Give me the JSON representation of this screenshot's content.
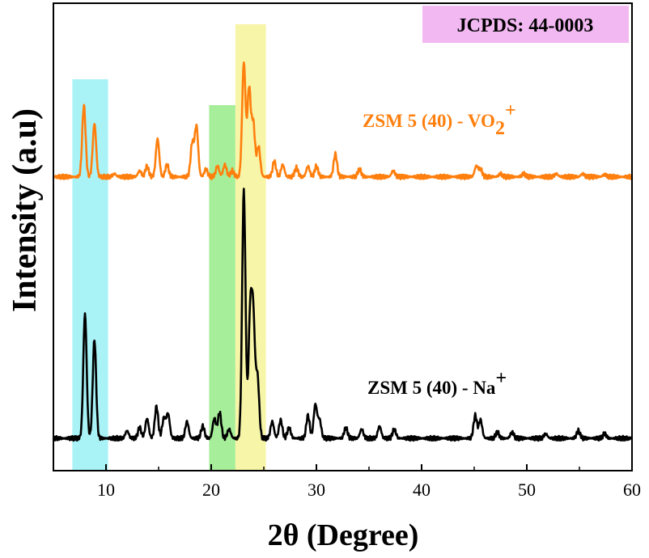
{
  "chart_data": {
    "type": "line",
    "xlabel": "2θ (Degree)",
    "ylabel": "Intensity (a.u)",
    "xlim": [
      5,
      60
    ],
    "x_ticks": [
      "10",
      "20",
      "30",
      "40",
      "50",
      "60"
    ],
    "y_ticks_shown": false,
    "grid": false,
    "reference_label": "JCPDS: 44-0003",
    "reference_box_color": "#f2b8f2",
    "highlight_bands": [
      {
        "x_range": [
          6.8,
          10.2
        ],
        "color": "#a9f3f7"
      },
      {
        "x_range": [
          19.8,
          22.3
        ],
        "color": "#a7ee9a"
      },
      {
        "x_range": [
          22.3,
          25.2
        ],
        "color": "#f7f5a8"
      }
    ],
    "series": [
      {
        "name": "ZSM 5 (40) - Na",
        "label_superscript": "+",
        "label_subscript": "",
        "color": "#000000",
        "baseline": 0,
        "peaks": [
          [
            8.0,
            82
          ],
          [
            8.9,
            65
          ],
          [
            12.0,
            5
          ],
          [
            13.2,
            7
          ],
          [
            13.9,
            13
          ],
          [
            14.8,
            21
          ],
          [
            15.5,
            13
          ],
          [
            15.9,
            16
          ],
          [
            17.7,
            11
          ],
          [
            19.2,
            8
          ],
          [
            20.3,
            13
          ],
          [
            20.8,
            17
          ],
          [
            21.7,
            6
          ],
          [
            23.1,
            163
          ],
          [
            23.7,
            78
          ],
          [
            24.0,
            75
          ],
          [
            24.4,
            40
          ],
          [
            25.8,
            11
          ],
          [
            26.6,
            12
          ],
          [
            27.4,
            7
          ],
          [
            29.2,
            15
          ],
          [
            29.9,
            22
          ],
          [
            30.3,
            12
          ],
          [
            32.8,
            7
          ],
          [
            34.3,
            6
          ],
          [
            36.0,
            8
          ],
          [
            37.4,
            6
          ],
          [
            45.1,
            15
          ],
          [
            45.6,
            12
          ],
          [
            47.2,
            4
          ],
          [
            48.6,
            4
          ],
          [
            51.8,
            3
          ],
          [
            54.9,
            5
          ],
          [
            57.4,
            3
          ]
        ]
      },
      {
        "name": "ZSM 5 (40) - VO",
        "label_superscript": "+",
        "label_subscript": "2",
        "color": "#ff7f0e",
        "baseline": 172,
        "peaks": [
          [
            7.9,
            47
          ],
          [
            8.9,
            35
          ],
          [
            10.8,
            2
          ],
          [
            13.2,
            4
          ],
          [
            13.9,
            7
          ],
          [
            14.9,
            25
          ],
          [
            15.8,
            8
          ],
          [
            18.2,
            22
          ],
          [
            18.6,
            33
          ],
          [
            19.5,
            5
          ],
          [
            20.6,
            7
          ],
          [
            21.3,
            8
          ],
          [
            22.0,
            4
          ],
          [
            23.1,
            75
          ],
          [
            23.6,
            58
          ],
          [
            24.0,
            35
          ],
          [
            24.5,
            20
          ],
          [
            26.0,
            10
          ],
          [
            26.8,
            8
          ],
          [
            28.1,
            6
          ],
          [
            29.2,
            7
          ],
          [
            30.0,
            7
          ],
          [
            31.8,
            15
          ],
          [
            34.1,
            5
          ],
          [
            37.3,
            4
          ],
          [
            45.2,
            7
          ],
          [
            45.6,
            5
          ],
          [
            47.5,
            2
          ],
          [
            49.7,
            2
          ],
          [
            52.8,
            2
          ],
          [
            55.3,
            2
          ],
          [
            57.4,
            1.5
          ]
        ]
      }
    ]
  }
}
